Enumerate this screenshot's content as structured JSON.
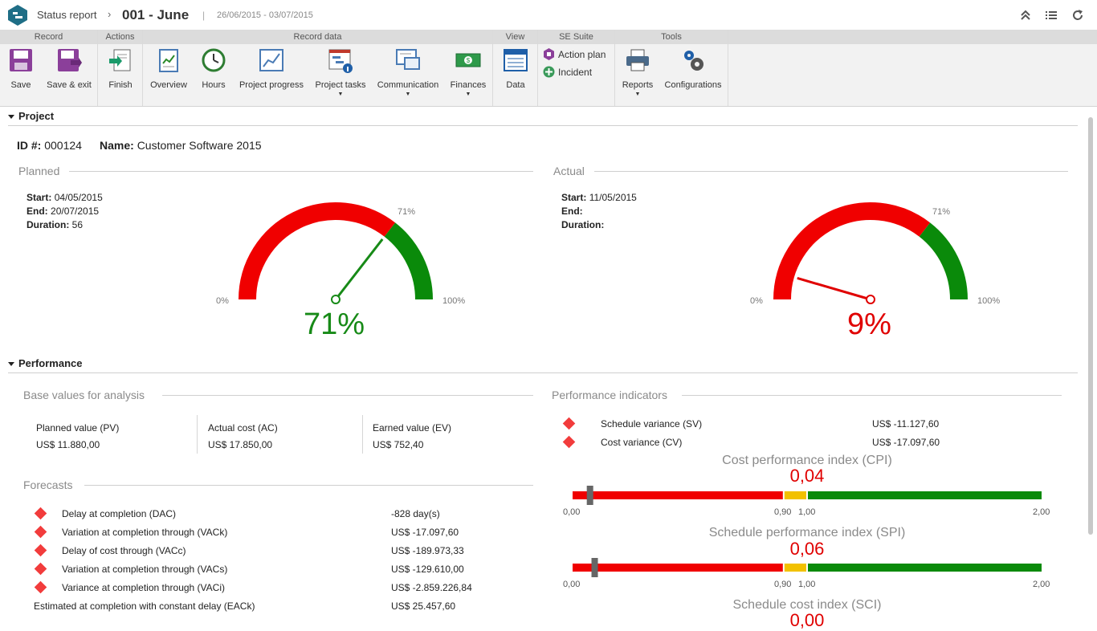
{
  "header": {
    "breadcrumb": "Status report",
    "record_title": "001 - June",
    "date_range": "26/06/2015 - 03/07/2015"
  },
  "ribbon": {
    "groups": {
      "record": "Record",
      "actions": "Actions",
      "record_data": "Record data",
      "view": "View",
      "se_suite": "SE Suite",
      "tools": "Tools"
    },
    "buttons": {
      "save": "Save",
      "save_exit": "Save & exit",
      "finish": "Finish",
      "overview": "Overview",
      "hours": "Hours",
      "project_progress": "Project progress",
      "project_tasks": "Project tasks",
      "communication": "Communication",
      "finances": "Finances",
      "data": "Data",
      "action_plan": "Action plan",
      "incident": "Incident",
      "reports": "Reports",
      "configurations": "Configurations"
    },
    "dropdown_glyph": "▼"
  },
  "project": {
    "section_title": "Project",
    "id_label": "ID #:",
    "id_value": "000124",
    "name_label": "Name:",
    "name_value": "Customer Software 2015",
    "planned": {
      "title": "Planned",
      "start_label": "Start:",
      "start_value": "04/05/2015",
      "end_label": "End:",
      "end_value": "20/07/2015",
      "duration_label": "Duration:",
      "duration_value": "56",
      "gauge": {
        "value": 71,
        "threshold": 71,
        "value_text": "71%",
        "min_label": "0%",
        "max_label": "100%",
        "threshold_label": "71%",
        "color": "#178a17"
      }
    },
    "actual": {
      "title": "Actual",
      "start_label": "Start:",
      "start_value": "11/05/2015",
      "end_label": "End:",
      "end_value": "",
      "duration_label": "Duration:",
      "duration_value": "",
      "gauge": {
        "value": 9,
        "threshold": 71,
        "value_text": "9%",
        "min_label": "0%",
        "max_label": "100%",
        "threshold_label": "71%",
        "color": "#e00000"
      }
    }
  },
  "performance": {
    "section_title": "Performance",
    "base_title": "Base values for analysis",
    "base": [
      {
        "label": "Planned value (PV)",
        "value": "US$ 11.880,00"
      },
      {
        "label": "Actual cost (AC)",
        "value": "US$ 17.850,00"
      },
      {
        "label": "Earned value (EV)",
        "value": "US$ 752,40"
      }
    ],
    "forecasts_title": "Forecasts",
    "forecasts": [
      {
        "label": "Delay at completion (DAC)",
        "value": "-828 day(s)",
        "flag": true
      },
      {
        "label": "Variation at completion through (VACk)",
        "value": "US$ -17.097,60",
        "flag": true
      },
      {
        "label": "Delay of cost through (VACc)",
        "value": "US$ -189.973,33",
        "flag": true
      },
      {
        "label": "Variation at completion through (VACs)",
        "value": "US$ -129.610,00",
        "flag": true
      },
      {
        "label": "Variance at completion through (VACi)",
        "value": "US$ -2.859.226,84",
        "flag": true
      },
      {
        "label": "Estimated at completion with constant delay (EACk)",
        "value": "US$ 25.457,60",
        "flag": false
      }
    ],
    "indicators_title": "Performance indicators",
    "indicators": [
      {
        "label": "Schedule variance (SV)",
        "value": "US$ -11.127,60"
      },
      {
        "label": "Cost variance (CV)",
        "value": "US$ -17.097,60"
      }
    ],
    "indexes": [
      {
        "title": "Cost performance index (CPI)",
        "value_text": "0,04",
        "value": 0.04,
        "ticks": [
          "0,00",
          "0,90",
          "1,00",
          "2,00"
        ]
      },
      {
        "title": "Schedule performance index (SPI)",
        "value_text": "0,06",
        "value": 0.06,
        "ticks": [
          "0,00",
          "0,90",
          "1,00",
          "2,00"
        ]
      },
      {
        "title": "Schedule cost index (SCI)",
        "value_text": "0,00",
        "value": 0.0,
        "ticks": []
      }
    ],
    "bar_scale": {
      "min": 0,
      "red_until": 0.9,
      "yellow_until": 1.0,
      "max": 2.0
    }
  },
  "colors": {
    "red": "#f00000",
    "green": "#0a8a0a",
    "yellow": "#f2c100",
    "brand": "#1f6e86"
  }
}
